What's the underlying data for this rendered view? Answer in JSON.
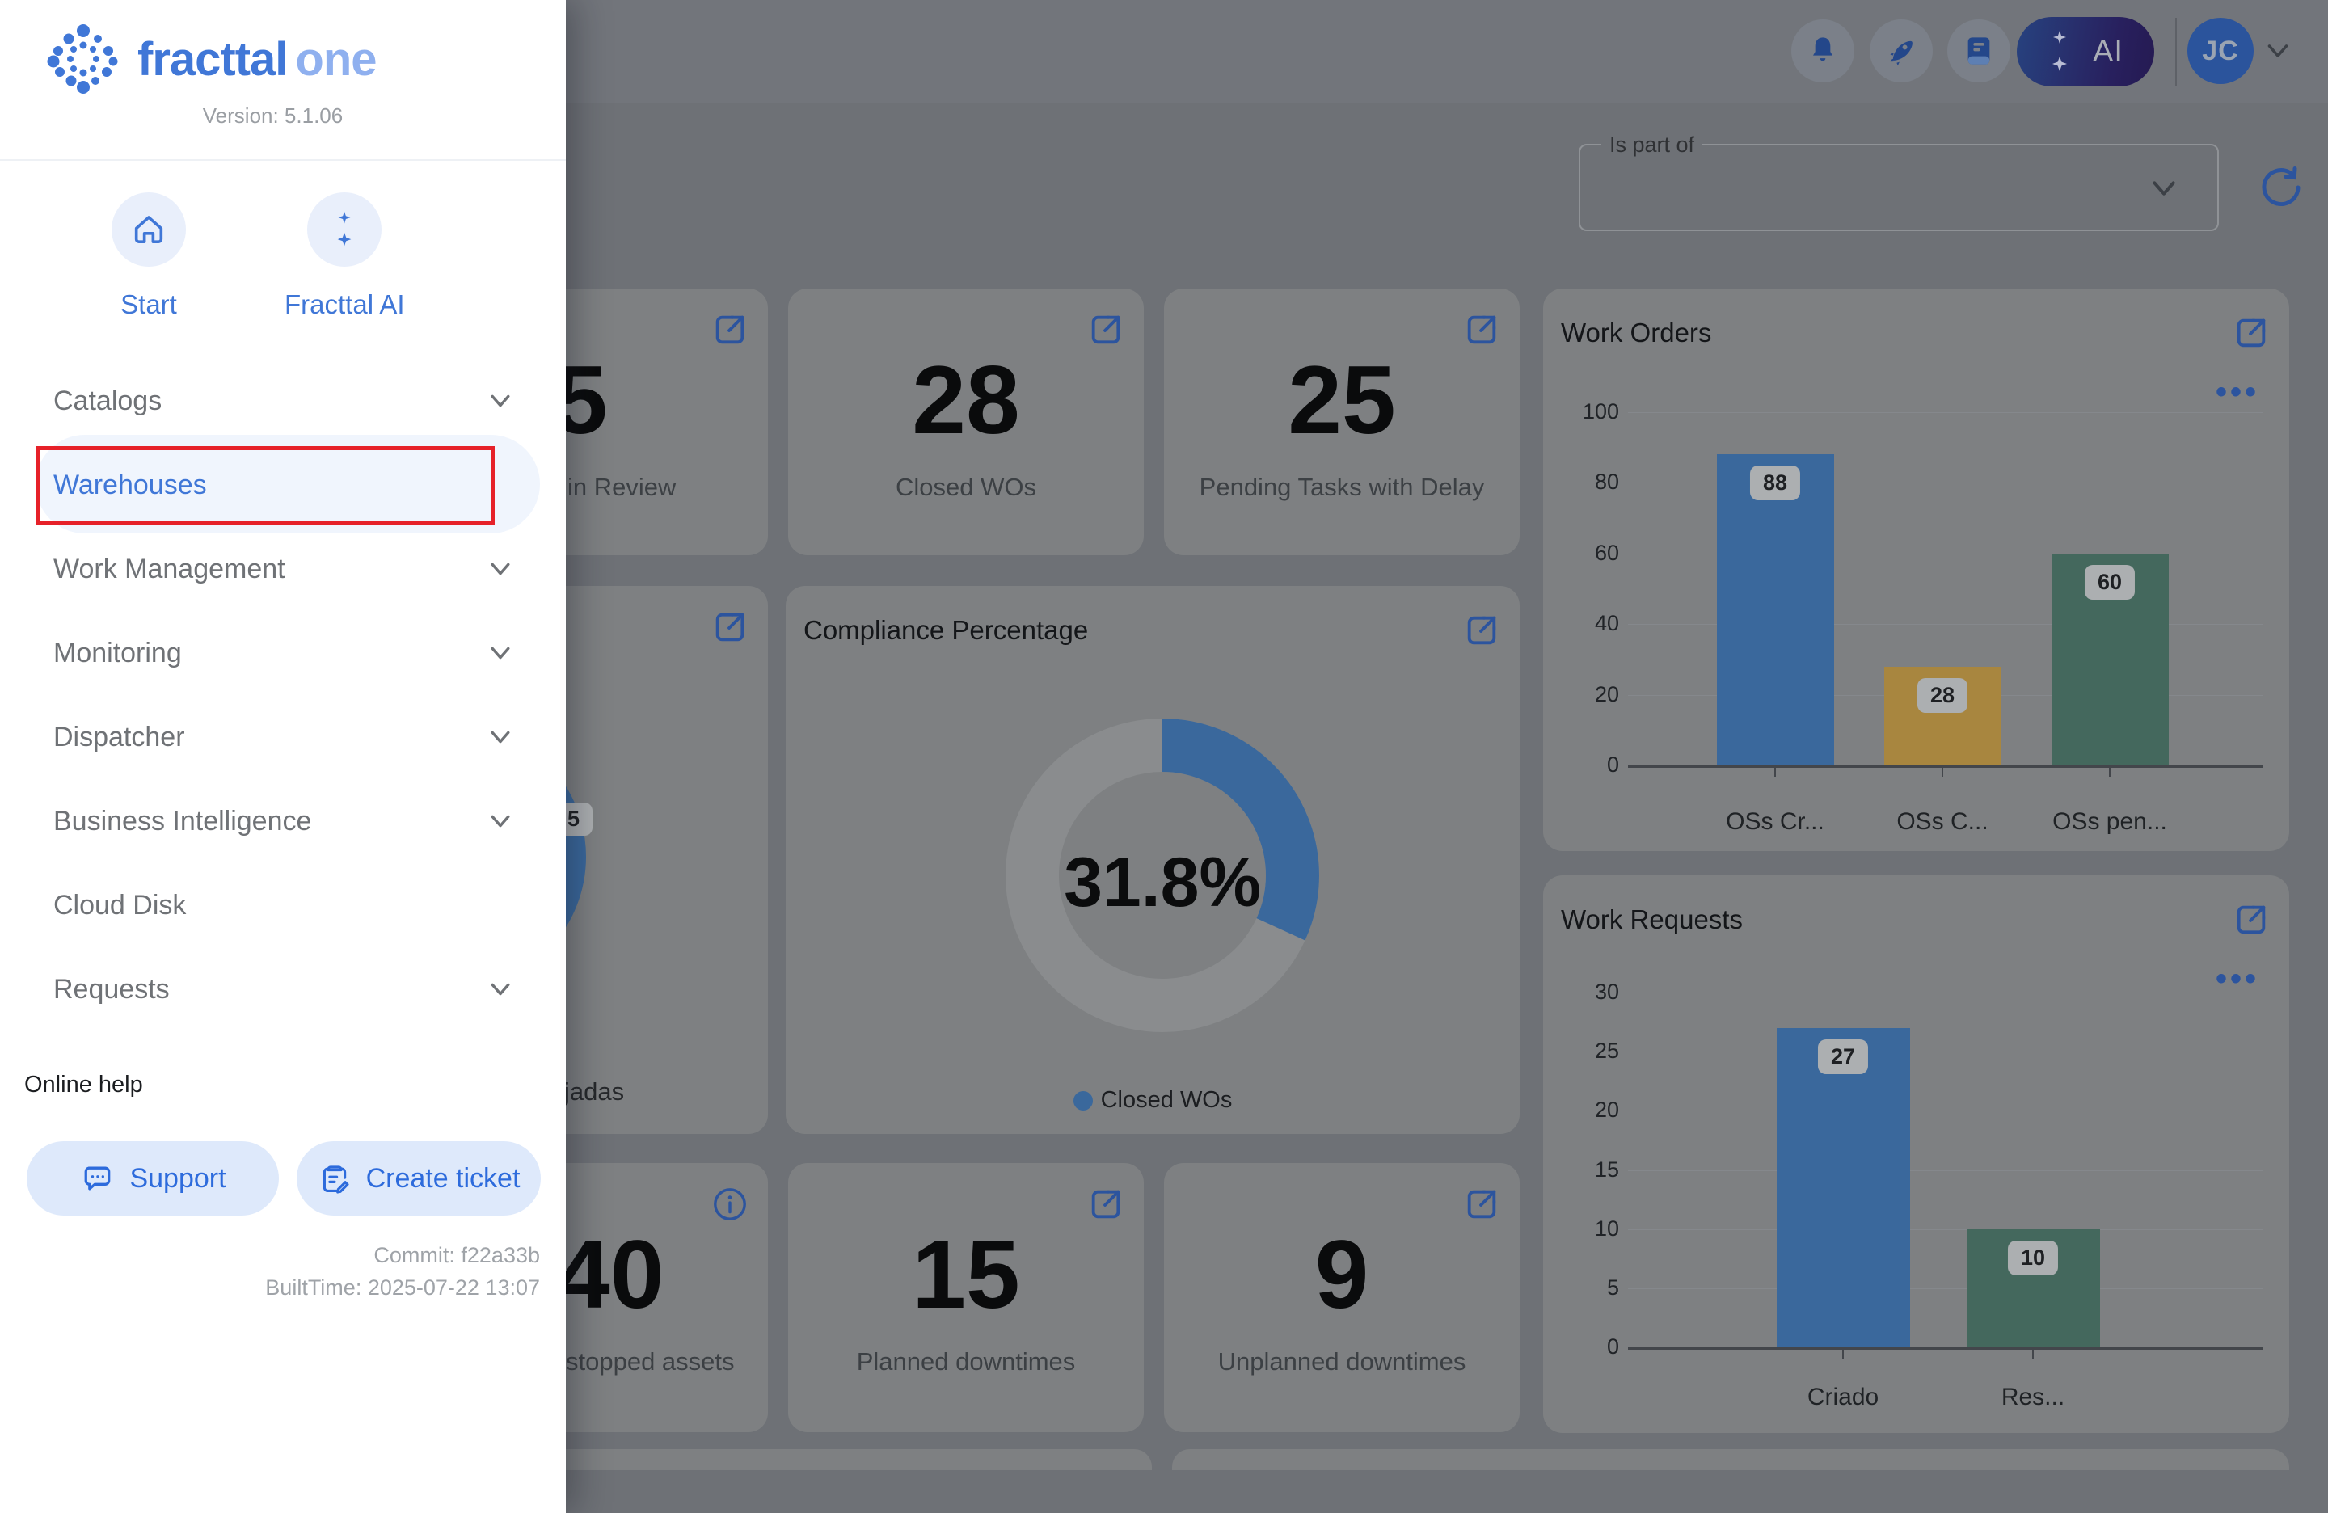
{
  "sidebar": {
    "brand": {
      "name_primary": "fracttal",
      "name_secondary": "one",
      "version_label": "Version: 5.1.06"
    },
    "quick_actions": [
      {
        "label": "Start"
      },
      {
        "label": "Fracttal AI"
      }
    ],
    "menu": [
      {
        "label": "Catalogs",
        "expandable": true,
        "active": false
      },
      {
        "label": "Warehouses",
        "expandable": false,
        "active": true,
        "annotated": true
      },
      {
        "label": "Work Management",
        "expandable": true,
        "active": false
      },
      {
        "label": "Monitoring",
        "expandable": true,
        "active": false
      },
      {
        "label": "Dispatcher",
        "expandable": true,
        "active": false
      },
      {
        "label": "Business Intelligence",
        "expandable": true,
        "active": false
      },
      {
        "label": "Cloud Disk",
        "expandable": false,
        "active": false
      },
      {
        "label": "Requests",
        "expandable": true,
        "active": false
      }
    ],
    "help": {
      "section_label": "Online help",
      "support_label": "Support",
      "create_ticket_label": "Create ticket"
    },
    "build": {
      "commit": "Commit: f22a33b",
      "built_time": "BuiltTime: 2025-07-22 13:07"
    }
  },
  "topbar": {
    "ai_label": "AI",
    "avatar_initials": "JC"
  },
  "filter": {
    "label": "Is part of",
    "value": ""
  },
  "cards": {
    "in_review": {
      "value": "5",
      "label": "in Review"
    },
    "closed_wos": {
      "value": "28",
      "label": "Closed WOs"
    },
    "pending_tasks": {
      "value": "25",
      "label": "Pending Tasks with Delay"
    },
    "stopped_assets": {
      "value": "40",
      "label": "stopped assets"
    },
    "planned_downtimes": {
      "value": "15",
      "label": "Planned downtimes"
    },
    "unplanned_downtimes": {
      "value": "9",
      "label": "Unplanned downtimes"
    },
    "partial_donut_card": {
      "chip_value": "5",
      "label_fragment": "jadas"
    }
  },
  "compliance": {
    "title": "Compliance Percentage",
    "percent_label": "31.8%",
    "legend": [
      {
        "label": "Closed WOs",
        "color": "#3a689c"
      }
    ]
  },
  "chart_data": [
    {
      "id": "work_orders",
      "type": "bar",
      "title": "Work Orders",
      "categories": [
        "OSs Cr...",
        "OSs C...",
        "OSs pen..."
      ],
      "values": [
        88,
        28,
        60
      ],
      "bar_colors": [
        "#3a689c",
        "#a8863f",
        "#44685d"
      ],
      "ylim": [
        0,
        100
      ],
      "yticks": [
        0,
        20,
        40,
        60,
        80,
        100
      ],
      "grid": true,
      "value_labels": true,
      "legend_position": "none"
    },
    {
      "id": "work_requests",
      "type": "bar",
      "title": "Work Requests",
      "categories": [
        "Criado",
        "Res..."
      ],
      "values": [
        27,
        10
      ],
      "bar_colors": [
        "#3a689c",
        "#44685d"
      ],
      "ylim": [
        0,
        30
      ],
      "yticks": [
        0,
        5,
        10,
        15,
        20,
        25,
        30
      ],
      "grid": true,
      "value_labels": true,
      "legend_position": "none"
    },
    {
      "id": "compliance_donut",
      "type": "donut",
      "title": "Compliance Percentage",
      "value_percent": 31.8,
      "center_label": "31.8%",
      "legend": [
        "Closed WOs"
      ],
      "colors": {
        "value": "#3a689c",
        "track": "#8a8c8e"
      }
    }
  ],
  "colors": {
    "accent_blue": "#4077d7",
    "link_blue_dimmed": "#2c549e",
    "bar_blue": "#3a689c",
    "bar_gold": "#a8863f",
    "bar_teal": "#44685d",
    "donut_track": "#8a8c8e",
    "annotation_red": "#e62129",
    "card_bg_dimmed": "#7e8082",
    "page_bg_dimmed": "#6e7176"
  }
}
